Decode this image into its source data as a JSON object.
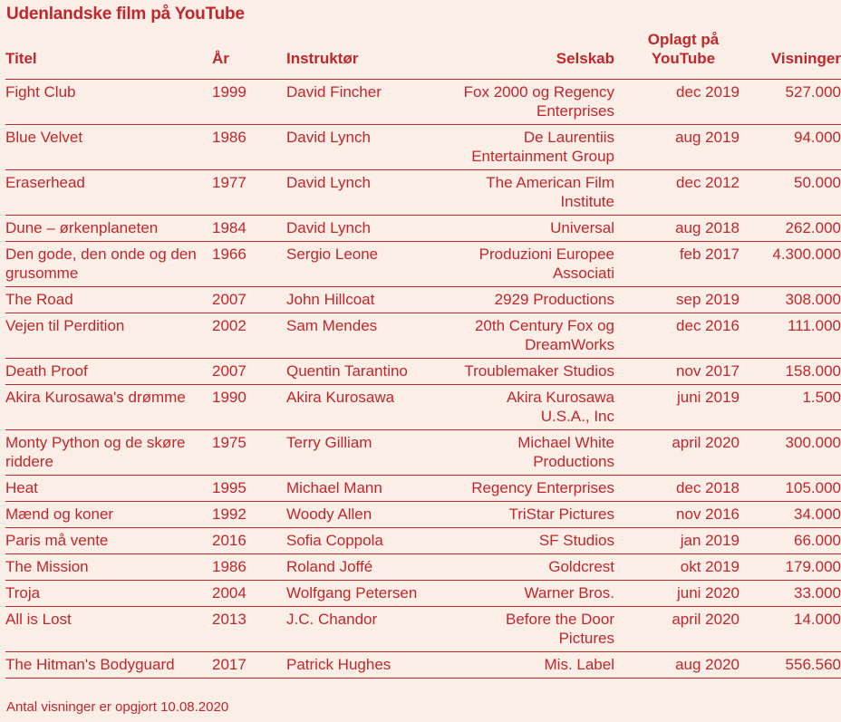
{
  "title": "Udenlandske film på YouTube",
  "columns": {
    "titel": "Titel",
    "aar": "År",
    "instruktoer": "Instruktør",
    "selskab": "Selskab",
    "oplagt": "Oplagt på YouTube",
    "visninger": "Visninger"
  },
  "rows": [
    {
      "titel": "Fight Club",
      "aar": "1999",
      "instruktoer": "David Fincher",
      "selskab": "Fox 2000 og Regency Enterprises",
      "oplagt": "dec 2019",
      "visninger": "527.000"
    },
    {
      "titel": "Blue Velvet",
      "aar": "1986",
      "instruktoer": "David Lynch",
      "selskab": "De Laurentiis Entertainment Group",
      "oplagt": "aug 2019",
      "visninger": "94.000"
    },
    {
      "titel": "Eraserhead",
      "aar": "1977",
      "instruktoer": "David Lynch",
      "selskab": "The American Film Institute",
      "oplagt": "dec 2012",
      "visninger": "50.000"
    },
    {
      "titel": "Dune – ørkenplaneten",
      "aar": "1984",
      "instruktoer": "David Lynch",
      "selskab": "Universal",
      "oplagt": "aug 2018",
      "visninger": "262.000"
    },
    {
      "titel": "Den gode, den onde og den grusomme",
      "aar": "1966",
      "instruktoer": "Sergio Leone",
      "selskab": "Produzioni Europee Associati",
      "oplagt": "feb 2017",
      "visninger": "4.300.000"
    },
    {
      "titel": "The Road",
      "aar": "2007",
      "instruktoer": "John Hillcoat",
      "selskab": "2929 Productions",
      "oplagt": "sep 2019",
      "visninger": "308.000"
    },
    {
      "titel": "Vejen til Perdition",
      "aar": "2002",
      "instruktoer": "Sam Mendes",
      "selskab": "20th Century Fox og DreamWorks",
      "oplagt": "dec 2016",
      "visninger": "111.000"
    },
    {
      "titel": "Death Proof",
      "aar": "2007",
      "instruktoer": "Quentin Tarantino",
      "selskab": "Troublemaker Studios",
      "oplagt": "nov 2017",
      "visninger": "158.000"
    },
    {
      "titel": "Akira Kurosawa's drømme",
      "aar": "1990",
      "instruktoer": "Akira Kurosawa",
      "selskab": "Akira Kurosawa U.S.A., Inc",
      "oplagt": "juni 2019",
      "visninger": "1.500"
    },
    {
      "titel": "Monty Python og de skøre riddere",
      "aar": "1975",
      "instruktoer": "Terry Gilliam",
      "selskab": "Michael White Productions",
      "oplagt": "april 2020",
      "visninger": "300.000"
    },
    {
      "titel": "Heat",
      "aar": "1995",
      "instruktoer": "Michael Mann",
      "selskab": "Regency Enterprises",
      "oplagt": "dec 2018",
      "visninger": "105.000"
    },
    {
      "titel": "Mænd og koner",
      "aar": "1992",
      "instruktoer": "Woody Allen",
      "selskab": "TriStar Pictures",
      "oplagt": "nov 2016",
      "visninger": "34.000"
    },
    {
      "titel": "Paris må vente",
      "aar": "2016",
      "instruktoer": "Sofia Coppola",
      "selskab": "SF Studios",
      "oplagt": "jan 2019",
      "visninger": "66.000"
    },
    {
      "titel": "The Mission",
      "aar": "1986",
      "instruktoer": "Roland Joffé",
      "selskab": "Goldcrest",
      "oplagt": "okt 2019",
      "visninger": "179.000"
    },
    {
      "titel": "Troja",
      "aar": "2004",
      "instruktoer": "Wolfgang Petersen",
      "selskab": "Warner Bros.",
      "oplagt": "juni 2020",
      "visninger": "33.000"
    },
    {
      "titel": "All is Lost",
      "aar": "2013",
      "instruktoer": "J.C. Chandor",
      "selskab": "Before the Door Pictures",
      "oplagt": "april 2020",
      "visninger": "14.000"
    },
    {
      "titel": "The Hitman's Bodyguard",
      "aar": "2017",
      "instruktoer": "Patrick Hughes",
      "selskab": "Mis. Label",
      "oplagt": "aug 2020",
      "visninger": "556.560"
    }
  ],
  "footnote": "Antal visninger er opgjort 10.08.2020"
}
